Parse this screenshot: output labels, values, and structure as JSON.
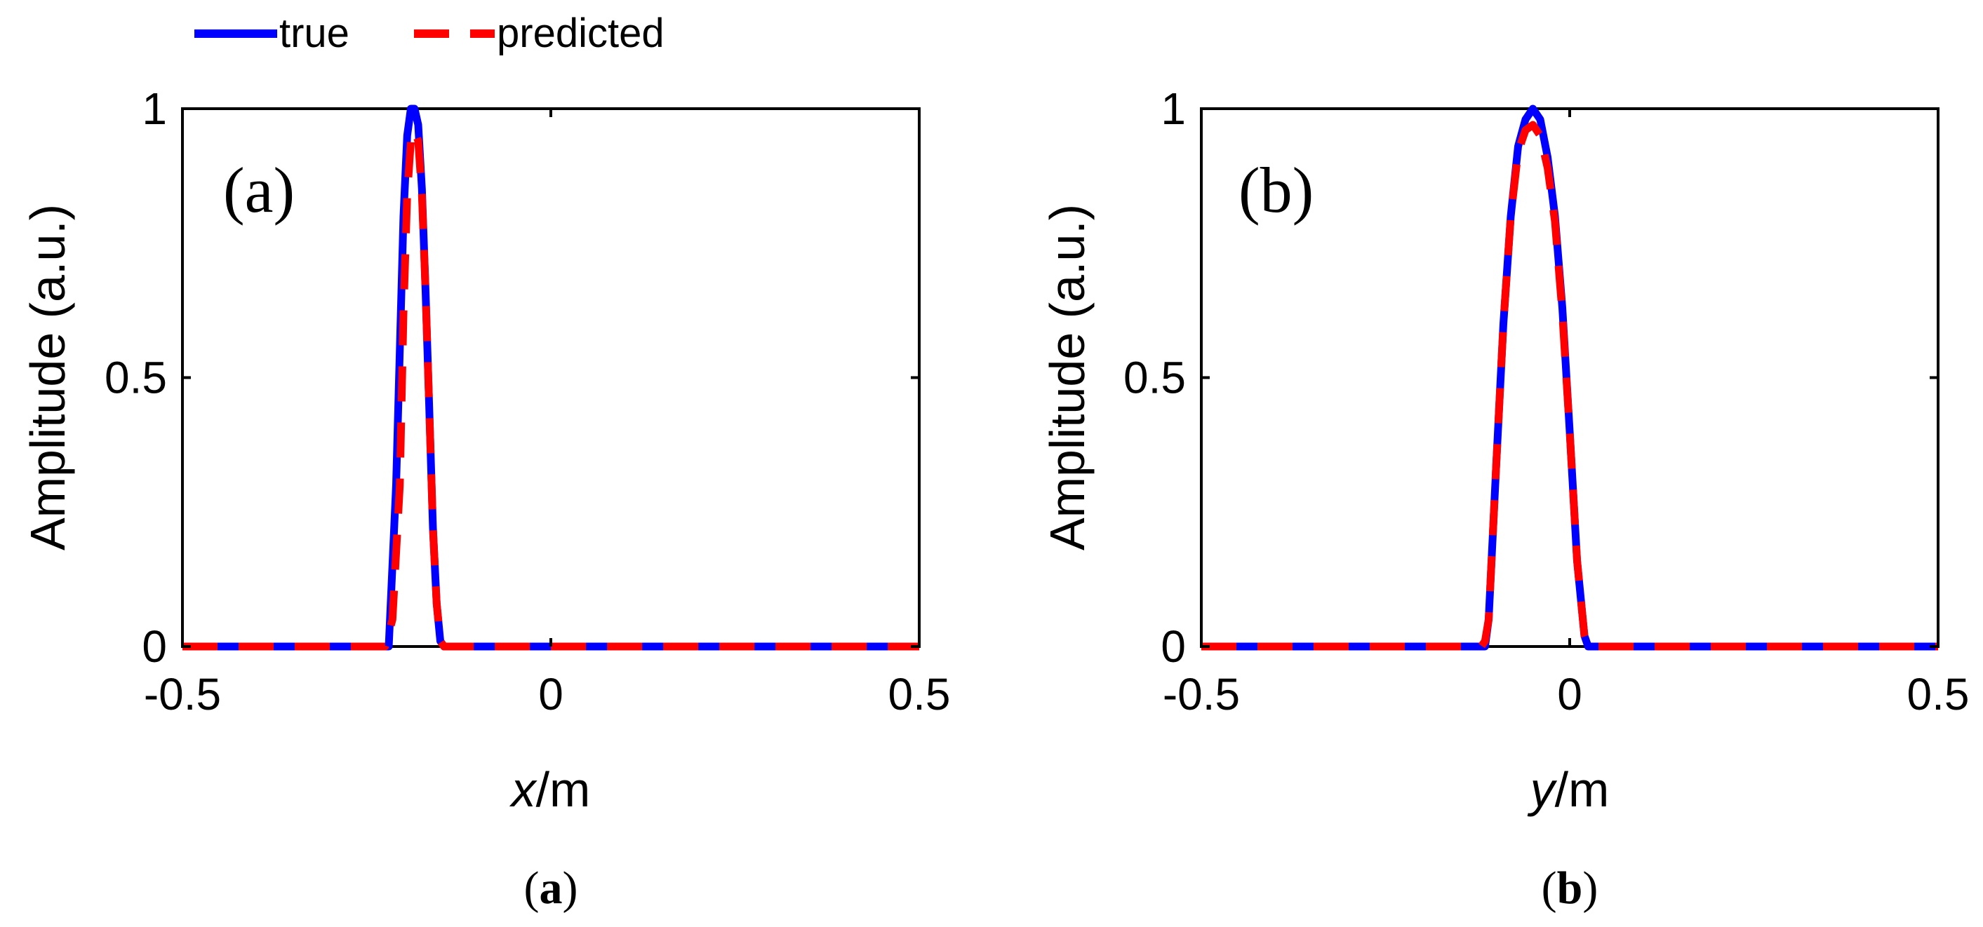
{
  "legend": {
    "items": [
      {
        "label": "true",
        "color": "#0000ff",
        "style": "solid"
      },
      {
        "label": "predicted",
        "color": "#ff0000",
        "style": "dashed"
      }
    ],
    "placement": "top-left"
  },
  "chart_data": [
    {
      "type": "line",
      "panel_label": "(a)",
      "caption": {
        "open": "(",
        "letter": "a",
        "close": ")"
      },
      "xlabel": {
        "var": "x",
        "unit": "/m"
      },
      "ylabel": "Amplitude (a.u.)",
      "xlim": [
        -0.5,
        0.5
      ],
      "ylim": [
        0,
        1
      ],
      "xticks": [
        -0.5,
        0,
        0.5
      ],
      "xtick_labels": [
        "-0.5",
        "0",
        "0.5"
      ],
      "yticks": [
        0,
        0.5,
        1
      ],
      "ytick_labels": [
        "0",
        "0.5",
        "1"
      ],
      "grid": false,
      "series": [
        {
          "name": "true",
          "color": "#0000ff",
          "x": [
            -0.5,
            -0.22,
            -0.21,
            -0.2,
            -0.195,
            -0.19,
            -0.185,
            -0.18,
            -0.175,
            -0.17,
            -0.165,
            -0.16,
            -0.155,
            -0.15,
            -0.145,
            0.5
          ],
          "y": [
            0,
            0,
            0.3,
            0.8,
            0.95,
            1.0,
            1.0,
            0.97,
            0.85,
            0.66,
            0.44,
            0.22,
            0.08,
            0.01,
            0,
            0
          ]
        },
        {
          "name": "predicted",
          "color": "#ff0000",
          "x": [
            -0.5,
            -0.225,
            -0.215,
            -0.205,
            -0.2,
            -0.195,
            -0.19,
            -0.185,
            -0.18,
            -0.175,
            -0.17,
            -0.165,
            -0.16,
            -0.155,
            -0.15,
            -0.145,
            0.5
          ],
          "y": [
            0,
            0,
            0.05,
            0.3,
            0.62,
            0.84,
            0.94,
            0.96,
            0.94,
            0.84,
            0.66,
            0.44,
            0.22,
            0.08,
            0.01,
            0,
            0
          ]
        }
      ]
    },
    {
      "type": "line",
      "panel_label": "(b)",
      "caption": {
        "open": "(",
        "letter": "b",
        "close": ")"
      },
      "xlabel": {
        "var": "y",
        "unit": "/m"
      },
      "ylabel": "Amplitude (a.u.)",
      "xlim": [
        -0.5,
        0.5
      ],
      "ylim": [
        0,
        1
      ],
      "xticks": [
        -0.5,
        0,
        0.5
      ],
      "xtick_labels": [
        "-0.5",
        "0",
        "0.5"
      ],
      "yticks": [
        0,
        0.5,
        1
      ],
      "ytick_labels": [
        "0",
        "0.5",
        "1"
      ],
      "grid": false,
      "series": [
        {
          "name": "true",
          "color": "#0000ff",
          "x": [
            -0.5,
            -0.115,
            -0.11,
            -0.1,
            -0.09,
            -0.08,
            -0.07,
            -0.06,
            -0.05,
            -0.04,
            -0.03,
            -0.02,
            -0.01,
            0.0,
            0.01,
            0.02,
            0.025,
            0.5
          ],
          "y": [
            0,
            0,
            0.05,
            0.33,
            0.6,
            0.8,
            0.93,
            0.98,
            1.0,
            0.98,
            0.91,
            0.8,
            0.63,
            0.4,
            0.16,
            0.02,
            0,
            0
          ]
        },
        {
          "name": "predicted",
          "color": "#ff0000",
          "x": [
            -0.5,
            -0.12,
            -0.115,
            -0.11,
            -0.1,
            -0.09,
            -0.08,
            -0.07,
            -0.06,
            -0.05,
            -0.04,
            -0.03,
            -0.02,
            -0.01,
            0.0,
            0.01,
            0.02,
            0.025,
            0.5
          ],
          "y": [
            0,
            0,
            0.01,
            0.05,
            0.33,
            0.6,
            0.8,
            0.92,
            0.96,
            0.97,
            0.95,
            0.89,
            0.79,
            0.62,
            0.4,
            0.16,
            0.02,
            0,
            0
          ]
        }
      ]
    }
  ]
}
